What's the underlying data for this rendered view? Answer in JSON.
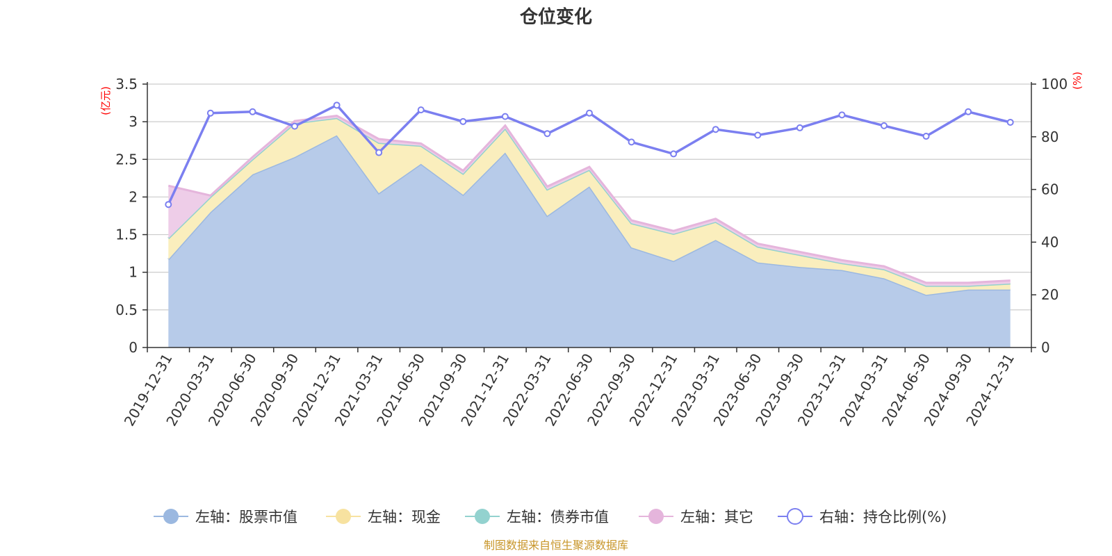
{
  "chart_data": {
    "type": "area",
    "title": "仓位变化",
    "source": "制图数据来自恒生聚源数据库",
    "categories": [
      "2019-12-31",
      "2020-03-31",
      "2020-06-30",
      "2020-09-30",
      "2020-12-31",
      "2021-03-31",
      "2021-06-30",
      "2021-09-30",
      "2021-12-31",
      "2022-03-31",
      "2022-06-30",
      "2022-09-30",
      "2022-12-31",
      "2023-03-31",
      "2023-06-30",
      "2023-09-30",
      "2023-12-31",
      "2024-03-31",
      "2024-06-30",
      "2024-09-30",
      "2024-12-31"
    ],
    "left_axis": {
      "unit": "(亿元)",
      "min": 0,
      "max": 3.5,
      "ticks": [
        "0",
        "0.5",
        "1",
        "1.5",
        "2",
        "2.5",
        "3",
        "3.5"
      ],
      "tick_values": [
        0,
        0.5,
        1,
        1.5,
        2,
        2.5,
        3,
        3.5
      ]
    },
    "right_axis": {
      "unit": "(%)",
      "min": 0,
      "max": 100,
      "ticks": [
        "0",
        "20",
        "40",
        "60",
        "80",
        "100"
      ],
      "tick_values": [
        0,
        20,
        40,
        60,
        80,
        100
      ]
    },
    "series": [
      {
        "name": "左轴：股票市值",
        "axis": "left",
        "stack": true,
        "color": "#9bb8e0",
        "fill": "#b7cbe9",
        "values": [
          1.17,
          1.8,
          2.3,
          2.53,
          2.82,
          2.05,
          2.44,
          2.03,
          2.59,
          1.75,
          2.14,
          1.33,
          1.15,
          1.43,
          1.13,
          1.07,
          1.03,
          0.92,
          0.7,
          0.77,
          0.77
        ]
      },
      {
        "name": "左轴：现金",
        "axis": "left",
        "stack": true,
        "color": "#f7e2a0",
        "fill": "#faeebd",
        "values": [
          0.28,
          0.2,
          0.2,
          0.45,
          0.23,
          0.67,
          0.24,
          0.28,
          0.32,
          0.35,
          0.22,
          0.32,
          0.36,
          0.24,
          0.21,
          0.16,
          0.09,
          0.12,
          0.12,
          0.05,
          0.08
        ]
      },
      {
        "name": "左轴：债券市值",
        "axis": "left",
        "stack": true,
        "color": "#93d2cf",
        "fill": "#b5e1df",
        "values": [
          0,
          0,
          0,
          0,
          0,
          0,
          0,
          0,
          0,
          0,
          0,
          0,
          0,
          0,
          0,
          0,
          0,
          0,
          0,
          0,
          0
        ]
      },
      {
        "name": "左轴：其它",
        "axis": "left",
        "stack": true,
        "color": "#e5b5dc",
        "fill": "#eecde8",
        "values": [
          0.7,
          0.02,
          0.03,
          0.03,
          0.03,
          0.05,
          0.03,
          0.04,
          0.04,
          0.04,
          0.04,
          0.04,
          0.04,
          0.04,
          0.04,
          0.04,
          0.04,
          0.04,
          0.04,
          0.04,
          0.04
        ]
      },
      {
        "name": "右轴：持仓比例(%)",
        "axis": "right",
        "stack": false,
        "color": "#7b7ff0",
        "fill": "none",
        "values": [
          54.3,
          89.0,
          89.5,
          84.0,
          92.0,
          74.0,
          90.2,
          85.8,
          87.7,
          81.2,
          89.0,
          78.0,
          73.5,
          82.8,
          80.6,
          83.4,
          88.3,
          84.2,
          80.2,
          89.5,
          85.5
        ]
      }
    ],
    "legend_position": "bottom-center",
    "grid": true
  }
}
